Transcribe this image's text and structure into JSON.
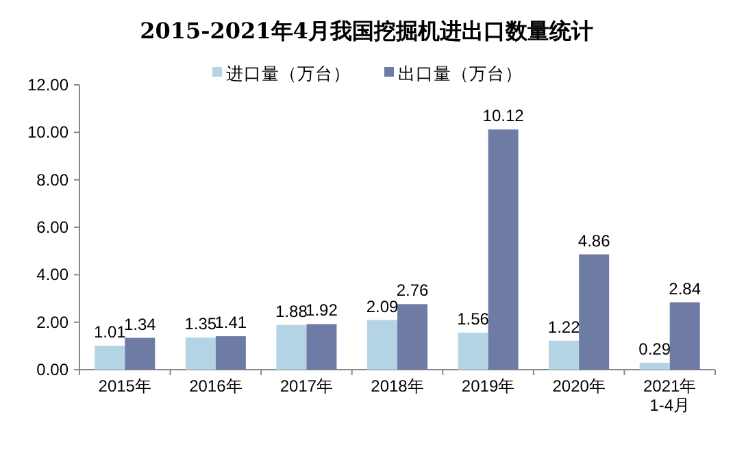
{
  "chart_data": {
    "type": "bar",
    "title": "2015-2021年4月我国挖掘机进出口数量统计",
    "categories": [
      "2015年",
      "2016年",
      "2017年",
      "2018年",
      "2019年",
      "2020年",
      "2021年\n1-4月"
    ],
    "series": [
      {
        "name": "进口量（万台）",
        "color": "#b4d3e4",
        "values": [
          1.01,
          1.35,
          1.88,
          2.09,
          1.56,
          1.22,
          0.29
        ]
      },
      {
        "name": "出口量（万台）",
        "color": "#6e7ba5",
        "values": [
          1.34,
          1.41,
          1.92,
          2.76,
          10.12,
          4.86,
          2.84
        ]
      }
    ],
    "ylim": [
      0,
      12
    ],
    "yticks": [
      {
        "value": 0,
        "label": "0.00"
      },
      {
        "value": 2,
        "label": "2.00"
      },
      {
        "value": 4,
        "label": "4.00"
      },
      {
        "value": 6,
        "label": "6.00"
      },
      {
        "value": 8,
        "label": "8.00"
      },
      {
        "value": 10,
        "label": "10.00"
      },
      {
        "value": 12,
        "label": "12.00"
      }
    ],
    "data_labels": true,
    "legend": "top",
    "grid": false
  }
}
